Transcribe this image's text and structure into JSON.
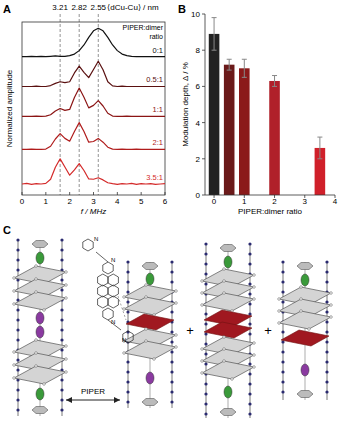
{
  "chart_data": [
    {
      "type": "line",
      "title": "A",
      "x_label": "f / MHz",
      "y_label": "Normalized amplitude",
      "x": [
        0,
        0.2,
        0.4,
        0.6,
        0.8,
        1.0,
        1.2,
        1.4,
        1.6,
        1.8,
        2.0,
        2.2,
        2.4,
        2.6,
        2.8,
        3.0,
        3.2,
        3.4,
        3.6,
        3.8,
        4.0,
        4.2,
        4.4,
        4.6,
        4.8,
        5.0,
        5.2,
        5.4,
        5.6,
        5.8,
        6.0
      ],
      "xlim": [
        0,
        6
      ],
      "xticks": [
        0,
        1,
        2,
        3,
        4,
        5,
        6
      ],
      "ylim": [
        0,
        5.5
      ],
      "yticks": [],
      "tick_labels": "x",
      "x2ticks": [
        {
          "value": 1.6,
          "label": "3.21"
        },
        {
          "value": 2.4,
          "label": "2.82"
        },
        {
          "value": 3.2,
          "label": "2.55"
        }
      ],
      "x2_label": "⟨dCu-Cu⟩ / nm",
      "grid": true,
      "legend": "right",
      "legend_title": "PIPER:dimer ratio",
      "series": [
        {
          "name": "0:1",
          "color": "#111111",
          "values": [
            4.4,
            4.4,
            4.41,
            4.4,
            4.41,
            4.4,
            4.41,
            4.42,
            4.41,
            4.41,
            4.43,
            4.48,
            4.59,
            4.77,
            5.01,
            5.22,
            5.3,
            5.22,
            5.01,
            4.77,
            4.59,
            4.48,
            4.43,
            4.41,
            4.4,
            4.4,
            4.4,
            4.4,
            4.4,
            4.4,
            4.4
          ]
        },
        {
          "name": "0.5:1",
          "color": "#5a1010",
          "values": [
            3.45,
            3.45,
            3.45,
            3.46,
            3.45,
            3.45,
            3.48,
            3.55,
            3.6,
            3.57,
            3.6,
            3.88,
            4.1,
            3.9,
            3.73,
            3.99,
            4.25,
            3.98,
            3.6,
            3.47,
            3.45,
            3.46,
            3.45,
            3.45,
            3.45,
            3.45,
            3.45,
            3.45,
            3.45,
            3.45,
            3.45
          ]
        },
        {
          "name": "1:1",
          "color": "#8b1414",
          "values": [
            2.5,
            2.5,
            2.5,
            2.51,
            2.5,
            2.51,
            2.55,
            2.67,
            2.75,
            2.69,
            2.72,
            3.1,
            3.4,
            3.11,
            2.77,
            2.85,
            3.0,
            2.83,
            2.6,
            2.51,
            2.5,
            2.5,
            2.51,
            2.5,
            2.5,
            2.5,
            2.5,
            2.5,
            2.5,
            2.5,
            2.5
          ]
        },
        {
          "name": "2:1",
          "color": "#b01c1c",
          "values": [
            1.45,
            1.45,
            1.46,
            1.45,
            1.45,
            1.46,
            1.55,
            1.78,
            1.95,
            1.8,
            1.71,
            2.02,
            2.3,
            2.02,
            1.68,
            1.7,
            1.8,
            1.68,
            1.52,
            1.46,
            1.45,
            1.46,
            1.45,
            1.45,
            1.46,
            1.45,
            1.45,
            1.45,
            1.45,
            1.45,
            1.45
          ]
        },
        {
          "name": "3.5:1",
          "color": "#d42a2a",
          "values": [
            0.35,
            0.37,
            0.34,
            0.36,
            0.35,
            0.37,
            0.5,
            0.88,
            1.15,
            0.89,
            0.63,
            0.8,
            1.0,
            0.78,
            0.51,
            0.5,
            0.55,
            0.48,
            0.39,
            0.36,
            0.34,
            0.36,
            0.35,
            0.37,
            0.34,
            0.36,
            0.35,
            0.36,
            0.34,
            0.35,
            0.36
          ]
        }
      ]
    },
    {
      "type": "bar",
      "title": "B",
      "x_label": "PIPER:dimer ratio",
      "y_label": "Modulation depth, Δ / %",
      "x": [
        0,
        0.5,
        1,
        2,
        3.5
      ],
      "values": [
        8.9,
        7.2,
        7.0,
        6.3,
        2.6
      ],
      "errors": [
        0.9,
        0.3,
        0.5,
        0.3,
        0.6
      ],
      "colors": [
        "#222222",
        "#6b1a1a",
        "#8b1a1a",
        "#b0202a",
        "#d0202a"
      ],
      "xlim": [
        -0.3,
        4
      ],
      "xticks": [
        0,
        1,
        2,
        3,
        4
      ],
      "ylim": [
        0,
        10
      ],
      "yticks": [
        0,
        2,
        4,
        6,
        8,
        10
      ]
    }
  ],
  "diagram": {
    "label": "C",
    "arrow_label": "PIPER",
    "plus": "+",
    "atoms": [
      "N",
      "N",
      "N",
      "N"
    ]
  }
}
